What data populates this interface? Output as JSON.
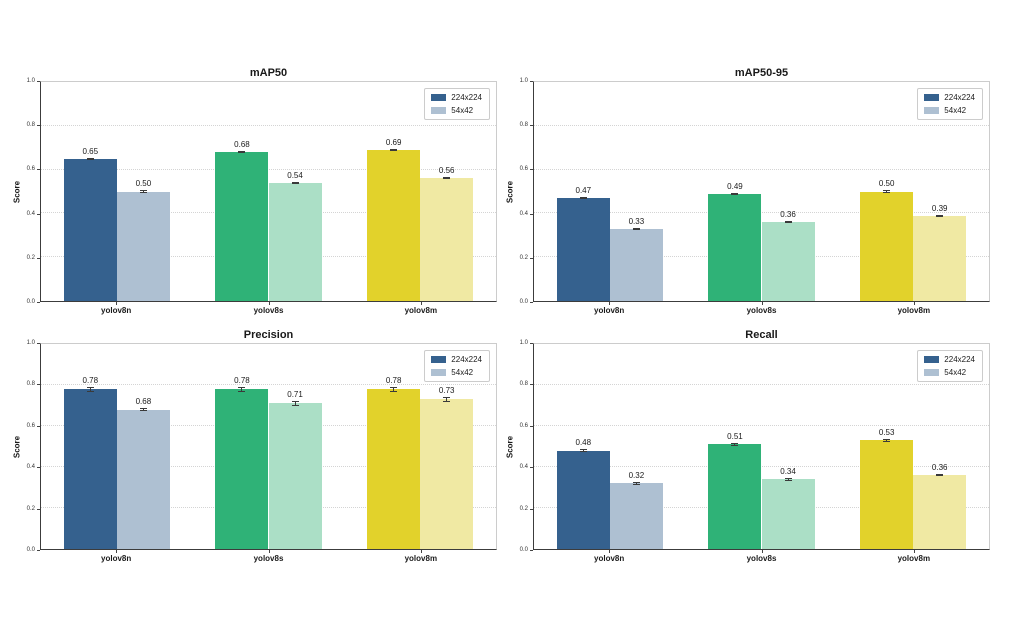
{
  "figure": {
    "background": "#ffffff",
    "ylabel": "Score",
    "y_ticks": [
      1.0,
      0.8,
      0.6,
      0.4,
      0.2,
      0.0
    ],
    "legend": {
      "position": "upper right",
      "entries": [
        {
          "label": "224x224",
          "color": "#35618e"
        },
        {
          "label": "54x42",
          "color": "#aec0d2"
        }
      ]
    },
    "group_colors": [
      {
        "main": "#35618e",
        "light": "#aec0d2"
      },
      {
        "main": "#2fb277",
        "light": "#abdfc6"
      },
      {
        "main": "#e2d22b",
        "light": "#f0e9a3"
      }
    ]
  },
  "chart_data": [
    {
      "type": "bar",
      "title": "mAP50",
      "ylabel": "Score",
      "ylim": [
        0.0,
        1.0
      ],
      "grid": "horizontal-dotted",
      "legend_position": "upper right",
      "categories": [
        "yolov8n",
        "yolov8s",
        "yolov8m"
      ],
      "series": [
        {
          "name": "224x224",
          "values": [
            0.65,
            0.68,
            0.69
          ],
          "errors": [
            0.005,
            0.005,
            0.005
          ]
        },
        {
          "name": "54x42",
          "values": [
            0.5,
            0.54,
            0.56
          ],
          "errors": [
            0.005,
            0.005,
            0.005
          ]
        }
      ]
    },
    {
      "type": "bar",
      "title": "mAP50-95",
      "ylabel": "Score",
      "ylim": [
        0.0,
        1.0
      ],
      "grid": "horizontal-dotted",
      "legend_position": "upper right",
      "categories": [
        "yolov8n",
        "yolov8s",
        "yolov8m"
      ],
      "series": [
        {
          "name": "224x224",
          "values": [
            0.47,
            0.49,
            0.5
          ],
          "errors": [
            0.005,
            0.005,
            0.005
          ]
        },
        {
          "name": "54x42",
          "values": [
            0.33,
            0.36,
            0.39
          ],
          "errors": [
            0.005,
            0.005,
            0.005
          ]
        }
      ]
    },
    {
      "type": "bar",
      "title": "Precision",
      "ylabel": "Score",
      "ylim": [
        0.0,
        1.0
      ],
      "grid": "horizontal-dotted",
      "legend_position": "upper right",
      "categories": [
        "yolov8n",
        "yolov8s",
        "yolov8m"
      ],
      "series": [
        {
          "name": "224x224",
          "values": [
            0.78,
            0.78,
            0.78
          ],
          "errors": [
            0.012,
            0.012,
            0.012
          ]
        },
        {
          "name": "54x42",
          "values": [
            0.68,
            0.71,
            0.73
          ],
          "errors": [
            0.008,
            0.01,
            0.012
          ]
        }
      ]
    },
    {
      "type": "bar",
      "title": "Recall",
      "ylabel": "Score",
      "ylim": [
        0.0,
        1.0
      ],
      "grid": "horizontal-dotted",
      "legend_position": "upper right",
      "categories": [
        "yolov8n",
        "yolov8s",
        "yolov8m"
      ],
      "series": [
        {
          "name": "224x224",
          "values": [
            0.48,
            0.51,
            0.53
          ],
          "errors": [
            0.006,
            0.006,
            0.006
          ]
        },
        {
          "name": "54x42",
          "values": [
            0.32,
            0.34,
            0.36
          ],
          "errors": [
            0.006,
            0.006,
            0.006
          ]
        }
      ]
    }
  ]
}
